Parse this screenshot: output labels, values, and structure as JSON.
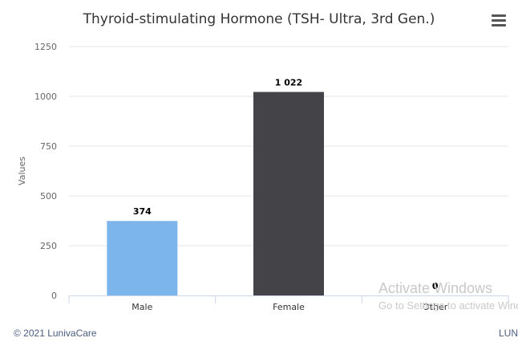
{
  "chart_data": {
    "type": "bar",
    "title": "Thyroid-stimulating Hormone (TSH- Ultra, 3rd Gen.)",
    "xlabel": "",
    "ylabel": "Values",
    "categories": [
      "Male",
      "Female",
      "Other"
    ],
    "values": [
      374,
      1022,
      0
    ],
    "data_labels": [
      "374",
      "1 022",
      "0"
    ],
    "bar_colors": [
      "#7cb5ec",
      "#434348",
      "#90ed7d"
    ],
    "ylim": [
      0,
      1250
    ],
    "yticks": [
      0,
      250,
      500,
      750,
      1000,
      1250
    ],
    "grid": true,
    "legend": "none"
  },
  "menu": {
    "icon": "hamburger-menu-icon"
  },
  "footer": {
    "copyright": "© 2021 LunivaCare",
    "right_text": "LUN"
  },
  "watermark": {
    "title": "Activate Windows",
    "subtitle": "Go to Settings to activate Windows."
  }
}
